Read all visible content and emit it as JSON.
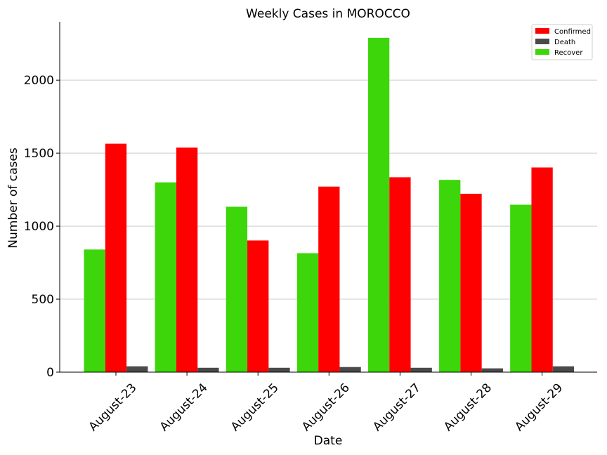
{
  "chart_data": {
    "type": "bar",
    "title": "Weekly Cases in MOROCCO",
    "xlabel": "Date",
    "ylabel": "Number of cases",
    "categories": [
      "August-23",
      "August-24",
      "August-25",
      "August-26",
      "August-27",
      "August-28",
      "August-29"
    ],
    "series": [
      {
        "name": "Recover",
        "color": "#3cd60a",
        "values": [
          840,
          1300,
          1133,
          815,
          2290,
          1317,
          1147
        ]
      },
      {
        "name": "Confirmed",
        "color": "#ff0000",
        "values": [
          1565,
          1538,
          902,
          1271,
          1335,
          1222,
          1402
        ]
      },
      {
        "name": "Death",
        "color": "#4a4a4a",
        "values": [
          40,
          30,
          30,
          35,
          30,
          26,
          40
        ]
      }
    ],
    "legend_order": [
      "Confirmed",
      "Death",
      "Recover"
    ],
    "legend_position": "top-right",
    "ylim": [
      0,
      2400
    ],
    "yticks": [
      0,
      500,
      1000,
      1500,
      2000
    ],
    "grid": "y"
  }
}
